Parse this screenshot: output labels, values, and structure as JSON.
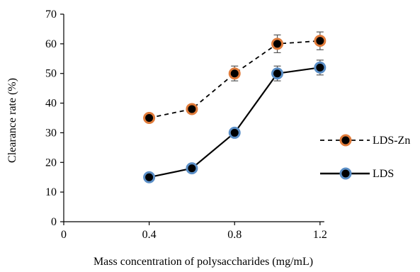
{
  "chart_data": {
    "type": "line",
    "xlabel": "Mass concentration of polysaccharides (mg/mL)",
    "ylabel": "Clearance rate (%)",
    "xlim": [
      0,
      1.3
    ],
    "ylim": [
      0,
      70
    ],
    "x_ticks": [
      "0",
      "0.4",
      "0.8",
      "1.2"
    ],
    "y_ticks": [
      "0",
      "10",
      "20",
      "30",
      "40",
      "50",
      "60",
      "70"
    ],
    "grid": false,
    "legend_position": "right",
    "series": [
      {
        "name": "LDS-Zn",
        "line_style": "dashed",
        "marker_edge_color": "#e07b3a",
        "x": [
          0.4,
          0.6,
          0.8,
          1.0,
          1.2
        ],
        "y": [
          35,
          38,
          50,
          60,
          61
        ],
        "error": [
          1.5,
          1.5,
          2.5,
          3,
          3
        ]
      },
      {
        "name": "LDS",
        "line_style": "solid",
        "marker_edge_color": "#5b8fc7",
        "x": [
          0.4,
          0.6,
          0.8,
          1.0,
          1.2
        ],
        "y": [
          15,
          18,
          30,
          50,
          52
        ],
        "error": [
          1,
          1,
          1,
          2.5,
          2.5
        ]
      }
    ]
  }
}
